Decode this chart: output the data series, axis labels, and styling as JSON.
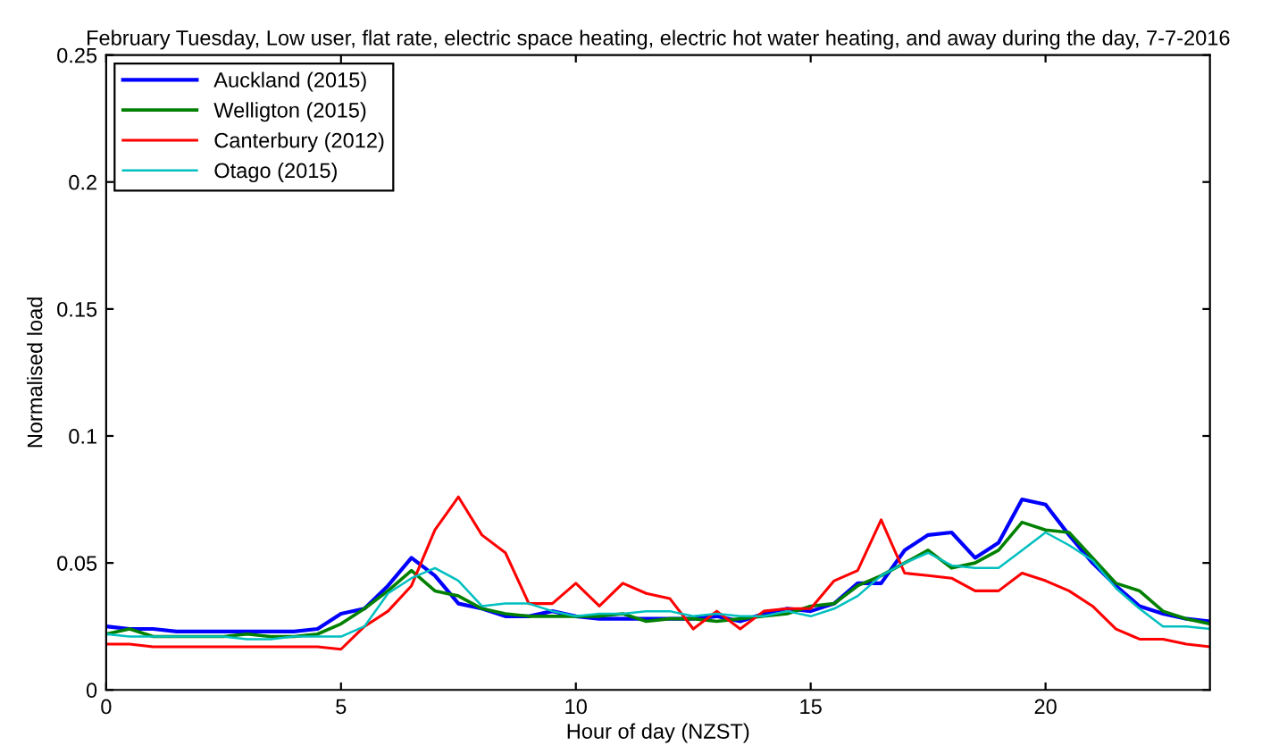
{
  "chart_data": {
    "type": "line",
    "title": "February Tuesday, Low user, flat rate, electric space heating, electric hot water heating, and away during the day, 7-7-2016",
    "xlabel": "Hour of day (NZST)",
    "ylabel": "Normalised load",
    "x": [
      0,
      0.5,
      1,
      1.5,
      2,
      2.5,
      3,
      3.5,
      4,
      4.5,
      5,
      5.5,
      6,
      6.5,
      7,
      7.5,
      8,
      8.5,
      9,
      9.5,
      10,
      10.5,
      11,
      11.5,
      12,
      12.5,
      13,
      13.5,
      14,
      14.5,
      15,
      15.5,
      16,
      16.5,
      17,
      17.5,
      18,
      18.5,
      19,
      19.5,
      20,
      20.5,
      21,
      21.5,
      22,
      22.5,
      23,
      23.5
    ],
    "series": [
      {
        "name": "Auckland (2015)",
        "color": "#0000ff",
        "values": [
          0.025,
          0.024,
          0.024,
          0.023,
          0.023,
          0.023,
          0.023,
          0.023,
          0.023,
          0.024,
          0.03,
          0.032,
          0.041,
          0.052,
          0.045,
          0.034,
          0.032,
          0.029,
          0.029,
          0.031,
          0.029,
          0.028,
          0.028,
          0.028,
          0.028,
          0.028,
          0.029,
          0.027,
          0.03,
          0.032,
          0.031,
          0.034,
          0.042,
          0.042,
          0.055,
          0.061,
          0.062,
          0.052,
          0.058,
          0.075,
          0.073,
          0.061,
          0.05,
          0.041,
          0.033,
          0.03,
          0.028,
          0.027
        ]
      },
      {
        "name": "Welligton (2015)",
        "color": "#008000",
        "values": [
          0.022,
          0.024,
          0.021,
          0.021,
          0.021,
          0.021,
          0.022,
          0.021,
          0.021,
          0.022,
          0.026,
          0.032,
          0.039,
          0.047,
          0.039,
          0.037,
          0.032,
          0.03,
          0.029,
          0.029,
          0.029,
          0.029,
          0.03,
          0.027,
          0.028,
          0.028,
          0.027,
          0.028,
          0.029,
          0.03,
          0.033,
          0.034,
          0.041,
          0.045,
          0.05,
          0.055,
          0.048,
          0.05,
          0.055,
          0.066,
          0.063,
          0.062,
          0.052,
          0.042,
          0.039,
          0.031,
          0.028,
          0.026
        ]
      },
      {
        "name": "Canterbury (2012)",
        "color": "#ff0000",
        "values": [
          0.018,
          0.018,
          0.017,
          0.017,
          0.017,
          0.017,
          0.017,
          0.017,
          0.017,
          0.017,
          0.016,
          0.025,
          0.031,
          0.041,
          0.063,
          0.076,
          0.061,
          0.054,
          0.034,
          0.034,
          0.042,
          0.033,
          0.042,
          0.038,
          0.036,
          0.024,
          0.031,
          0.024,
          0.031,
          0.032,
          0.032,
          0.043,
          0.047,
          0.067,
          0.046,
          0.045,
          0.044,
          0.039,
          0.039,
          0.046,
          0.043,
          0.039,
          0.033,
          0.024,
          0.02,
          0.02,
          0.018,
          0.017
        ]
      },
      {
        "name": "Otago (2015)",
        "color": "#00bfbf",
        "values": [
          0.022,
          0.021,
          0.021,
          0.021,
          0.021,
          0.021,
          0.02,
          0.02,
          0.021,
          0.021,
          0.021,
          0.025,
          0.038,
          0.044,
          0.048,
          0.043,
          0.033,
          0.034,
          0.034,
          0.031,
          0.029,
          0.03,
          0.03,
          0.031,
          0.031,
          0.029,
          0.03,
          0.029,
          0.029,
          0.031,
          0.029,
          0.032,
          0.037,
          0.045,
          0.05,
          0.054,
          0.049,
          0.048,
          0.048,
          0.055,
          0.062,
          0.057,
          0.051,
          0.04,
          0.032,
          0.025,
          0.025,
          0.024
        ]
      }
    ],
    "xlim": [
      0,
      23.5
    ],
    "ylim": [
      0,
      0.25
    ],
    "xticks": [
      0,
      5,
      10,
      15,
      20
    ],
    "yticks": [
      0,
      0.05,
      0.1,
      0.15,
      0.2,
      0.25
    ],
    "grid": false,
    "legend": "top left",
    "marker": "none",
    "line_style": "solid"
  }
}
